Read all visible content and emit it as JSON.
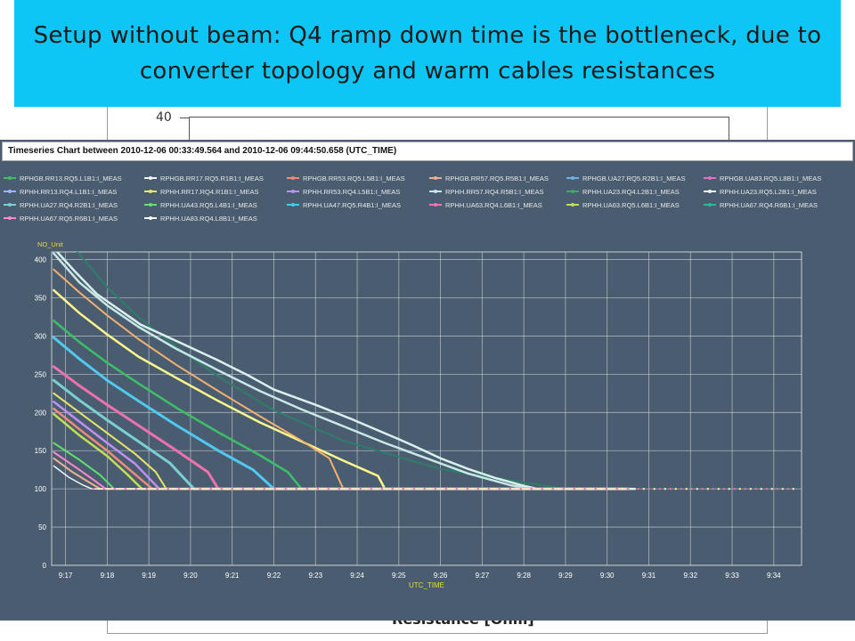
{
  "slide": {
    "title": "Setup without beam: Q4 ramp down time is the bottleneck, due to converter topology and warm cables resistances",
    "background_tick": "40",
    "background_caption": "Resistance [Ohm]"
  },
  "window": {
    "title": "Timeseries Chart between 2010-12-06 00:33:49.564 and 2010-12-06 09:44:50.658 (UTC_TIME)"
  },
  "colors": {
    "banner": "#0ec6f5",
    "window_bg": "#4a5d70",
    "plot_bg": "#4a5d70",
    "grid": "#d0d6dc",
    "axis_label": "#e5dc3c"
  },
  "chart_data": {
    "type": "line",
    "ylabel": "NO_Unit",
    "xlabel": "UTC_TIME",
    "ylim": [
      0,
      410
    ],
    "yticks": [
      "0",
      "50",
      "100",
      "150",
      "200",
      "250",
      "300",
      "350",
      "400"
    ],
    "xlim": [
      "9:16:40",
      "9:34:40"
    ],
    "xticks": [
      "9:17",
      "9:18",
      "9:19",
      "9:20",
      "9:21",
      "9:22",
      "9:23",
      "9:24",
      "9:25",
      "9:26",
      "9:27",
      "9:28",
      "9:29",
      "9:30",
      "9:31",
      "9:32",
      "9:33",
      "9:34"
    ],
    "grid": true,
    "legend_position": "top",
    "legend": [
      {
        "name": "RPHGB.RR13.RQ5.L1B1:I_MEAS",
        "color": "#3fbf5f"
      },
      {
        "name": "RPHGB.RR17.RQ5.R1B1:I_MEAS",
        "color": "#f4f4f4"
      },
      {
        "name": "RPHGB.RR53.RQ5.L5B1:I_MEAS",
        "color": "#f08a7a"
      },
      {
        "name": "RPHGB.RR57.RQ5.R5B1:I_MEAS",
        "color": "#f0b090"
      },
      {
        "name": "RPHGB.UA27.RQ5.R2B1:I_MEAS",
        "color": "#6fb0e0"
      },
      {
        "name": "RPHGB.UA83.RQ5.L8B1:I_MEAS",
        "color": "#e070c0"
      },
      {
        "name": "RPHH.RR13.RQ4.L1B1:I_MEAS",
        "color": "#a0b4ff"
      },
      {
        "name": "RPHH.RR17.RQ4.R1B1:I_MEAS",
        "color": "#e6e66a"
      },
      {
        "name": "RPHH.RR53.RQ4.L5B1:I_MEAS",
        "color": "#c090f0"
      },
      {
        "name": "RPHH.RR57.RQ4.R5B1:I_MEAS",
        "color": "#c6e6ea"
      },
      {
        "name": "RPHH.UA23.RQ4.L2B1:I_MEAS",
        "color": "#3aaa6a"
      },
      {
        "name": "RPHH.UA23.RQ5.L2B1:I_MEAS",
        "color": "#f0f0f0"
      },
      {
        "name": "RPHH.UA27.RQ4.R2B1:I_MEAS",
        "color": "#7ad0d0"
      },
      {
        "name": "RPHH.UA43.RQ5.L4B1:I_MEAS",
        "color": "#5fdf6f"
      },
      {
        "name": "RPHH.UA47.RQ5.R4B1:I_MEAS",
        "color": "#3ad0f0"
      },
      {
        "name": "RPHH.UA63.RQ4.L6B1:I_MEAS",
        "color": "#ff70b0"
      },
      {
        "name": "RPHH.UA63.RQ5.L6B1:I_MEAS",
        "color": "#c0e050"
      },
      {
        "name": "RPHH.UA67.RQ4.R6B1:I_MEAS",
        "color": "#2ab89a"
      },
      {
        "name": "RPHH.UA67.RQ5.R6B1:I_MEAS",
        "color": "#ff88cc"
      },
      {
        "name": "RPHH.UA83.RQ4.L8B1:I_MEAS",
        "color": "#f8f8f8"
      }
    ],
    "series": [
      {
        "color": "#2e7d6a",
        "width": 2,
        "x": [
          1037,
          1082,
          1125,
          1185,
          1247,
          1320,
          1420,
          1560,
          1738,
          1830
        ],
        "y": [
          410,
          362,
          325,
          282,
          243,
          203,
          163,
          126,
          100,
          100
        ]
      },
      {
        "color": "#d8f0ee",
        "width": 2.5,
        "x": [
          1003,
          1033,
          1065,
          1128,
          1188,
          1240,
          1282,
          1300,
          1320,
          1380,
          1430,
          1500,
          1520,
          1560,
          1600,
          1640,
          1680,
          1700,
          1710,
          1720,
          1800,
          1840
        ],
        "y": [
          415,
          385,
          355,
          315,
          290,
          268,
          249,
          240,
          230,
          210,
          192,
          165,
          157,
          140,
          126,
          114,
          104,
          100,
          100,
          100,
          100,
          100
        ]
      },
      {
        "color": "#c8e8e6",
        "width": 2.5,
        "x": [
          1003,
          1040,
          1080,
          1125,
          1180,
          1240,
          1300,
          1360,
          1420,
          1480,
          1540,
          1600,
          1660,
          1690,
          1820
        ],
        "y": [
          408,
          370,
          340,
          312,
          283,
          255,
          228,
          204,
          182,
          160,
          140,
          120,
          105,
          100,
          100
        ]
      },
      {
        "color": "#fdf98a",
        "width": 2.5,
        "x": [
          1003,
          1040,
          1080,
          1125,
          1180,
          1240,
          1300,
          1360,
          1420,
          1470,
          1480,
          1560,
          1820
        ],
        "y": [
          360,
          330,
          302,
          273,
          245,
          215,
          187,
          162,
          137,
          117,
          100,
          100,
          100
        ]
      },
      {
        "color": "#f4b070",
        "width": 2,
        "x": [
          1003,
          1040,
          1080,
          1125,
          1180,
          1240,
          1300,
          1360,
          1400,
          1420,
          1830
        ],
        "y": [
          387,
          357,
          327,
          296,
          262,
          228,
          195,
          163,
          140,
          100,
          100
        ]
      },
      {
        "color": "#3dbf6a",
        "width": 2.5,
        "x": [
          1003,
          1040,
          1080,
          1125,
          1180,
          1240,
          1300,
          1340,
          1360,
          1830
        ],
        "y": [
          320,
          292,
          265,
          238,
          206,
          174,
          144,
          122,
          100,
          100
        ]
      },
      {
        "color": "#50c8f0",
        "width": 3,
        "x": [
          1003,
          1040,
          1080,
          1125,
          1180,
          1240,
          1290,
          1320,
          1830
        ],
        "y": [
          298,
          270,
          242,
          215,
          183,
          150,
          125,
          100,
          100
        ]
      },
      {
        "color": "#f070b0",
        "width": 3,
        "x": [
          1003,
          1040,
          1080,
          1125,
          1180,
          1225,
          1240,
          1830
        ],
        "y": [
          260,
          235,
          210,
          183,
          150,
          122,
          100,
          100
        ]
      },
      {
        "color": "#7ad0d0",
        "width": 3,
        "x": [
          1003,
          1040,
          1080,
          1125,
          1170,
          1205,
          1830
        ],
        "y": [
          242,
          216,
          190,
          162,
          134,
          100,
          100
        ]
      },
      {
        "color": "#e6e66a",
        "width": 2,
        "x": [
          1003,
          1040,
          1080,
          1120,
          1150,
          1165,
          1830
        ],
        "y": [
          225,
          200,
          173,
          146,
          122,
          100,
          100
        ]
      },
      {
        "color": "#c090f0",
        "width": 2.5,
        "x": [
          1003,
          1040,
          1080,
          1120,
          1155,
          1830
        ],
        "y": [
          214,
          188,
          160,
          133,
          100,
          100
        ]
      },
      {
        "color": "#f08a7a",
        "width": 2.5,
        "x": [
          1003,
          1040,
          1080,
          1115,
          1145,
          1830
        ],
        "y": [
          205,
          178,
          150,
          123,
          100,
          100
        ]
      },
      {
        "color": "#c0e050",
        "width": 2.5,
        "x": [
          1003,
          1040,
          1080,
          1110,
          1130,
          1830
        ],
        "y": [
          198,
          170,
          143,
          118,
          100,
          100
        ]
      },
      {
        "color": "#5fdf6f",
        "width": 2,
        "x": [
          1003,
          1040,
          1070,
          1090,
          1830
        ],
        "y": [
          160,
          138,
          118,
          100,
          100
        ]
      },
      {
        "color": "#ff88cc",
        "width": 2,
        "x": [
          1003,
          1035,
          1060,
          1078,
          1830
        ],
        "y": [
          148,
          128,
          112,
          100,
          100
        ]
      },
      {
        "color": "#f0b090",
        "width": 2,
        "x": [
          1003,
          1030,
          1055,
          1070,
          1830
        ],
        "y": [
          140,
          122,
          108,
          100,
          100
        ]
      },
      {
        "color": "#f4f4f4",
        "width": 1.5,
        "x": [
          1003,
          1025,
          1045,
          1058,
          1830
        ],
        "y": [
          130,
          115,
          105,
          100,
          100
        ]
      }
    ]
  }
}
